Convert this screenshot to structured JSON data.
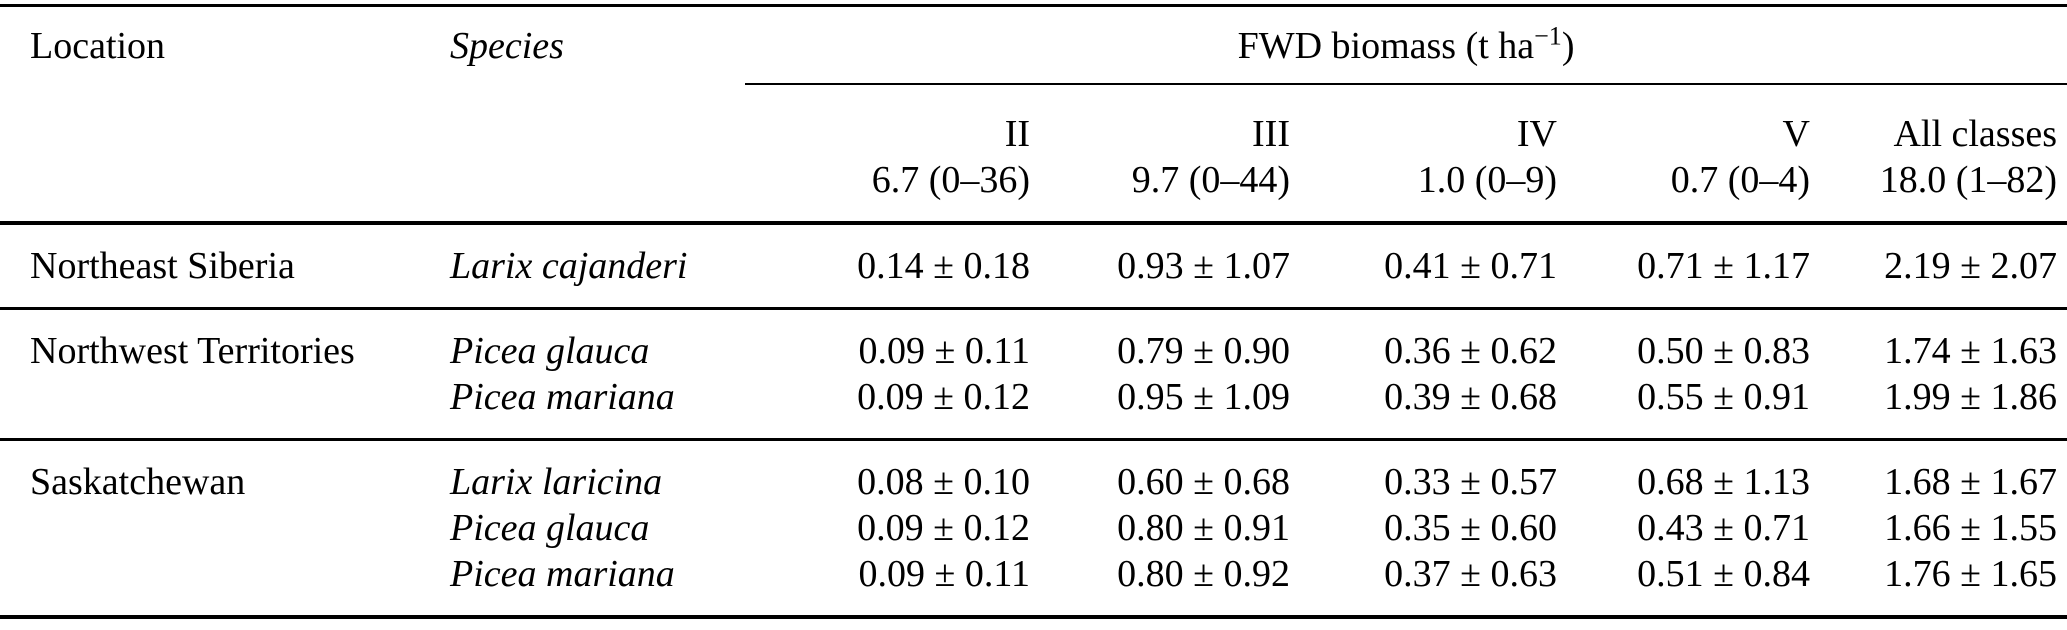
{
  "colors": {
    "background": "#ffffff",
    "text": "#000000",
    "rule": "#000000"
  },
  "table": {
    "col_headers": {
      "location": "Location",
      "species": "Species"
    },
    "group_header": {
      "prefix": "FWD biomass (t ha",
      "sup": "−1",
      "suffix": ")"
    },
    "classes": [
      {
        "label": "II",
        "mean_range": "6.7 (0–36)"
      },
      {
        "label": "III",
        "mean_range": "9.7 (0–44)"
      },
      {
        "label": "IV",
        "mean_range": "1.0 (0–9)"
      },
      {
        "label": "V",
        "mean_range": "0.7 (0–4)"
      },
      {
        "label": "All classes",
        "mean_range": "18.0 (1–82)"
      }
    ],
    "sections": [
      {
        "location": "Northeast Siberia",
        "rows": [
          {
            "species": "Larix cajanderi",
            "values": [
              "0.14 ± 0.18",
              "0.93 ± 1.07",
              "0.41 ± 0.71",
              "0.71 ± 1.17",
              "2.19 ± 2.07"
            ]
          }
        ]
      },
      {
        "location": "Northwest Territories",
        "rows": [
          {
            "species": "Picea glauca",
            "values": [
              "0.09 ± 0.11",
              "0.79 ± 0.90",
              "0.36 ± 0.62",
              "0.50 ± 0.83",
              "1.74 ± 1.63"
            ]
          },
          {
            "species": "Picea mariana",
            "values": [
              "0.09 ± 0.12",
              "0.95 ± 1.09",
              "0.39 ± 0.68",
              "0.55 ± 0.91",
              "1.99 ± 1.86"
            ]
          }
        ]
      },
      {
        "location": "Saskatchewan",
        "rows": [
          {
            "species": "Larix laricina",
            "values": [
              "0.08 ± 0.10",
              "0.60 ± 0.68",
              "0.33 ± 0.57",
              "0.68 ± 1.13",
              "1.68 ± 1.67"
            ]
          },
          {
            "species": "Picea glauca",
            "values": [
              "0.09 ± 0.12",
              "0.80 ± 0.91",
              "0.35 ± 0.60",
              "0.43 ± 0.71",
              "1.66 ± 1.55"
            ]
          },
          {
            "species": "Picea mariana",
            "values": [
              "0.09 ± 0.11",
              "0.80 ± 0.92",
              "0.37 ± 0.63",
              "0.51 ± 0.84",
              "1.76 ± 1.65"
            ]
          }
        ]
      }
    ]
  }
}
